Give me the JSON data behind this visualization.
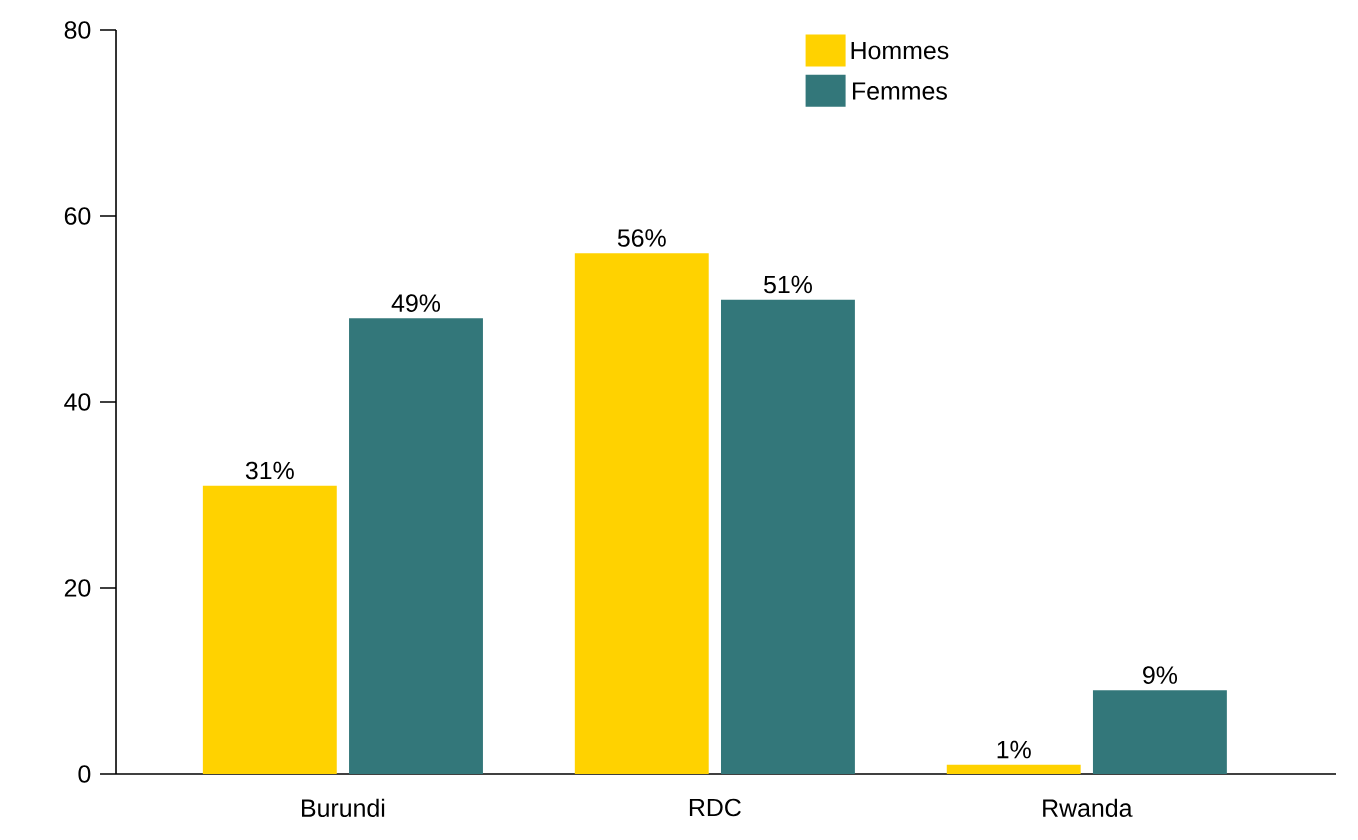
{
  "chart_data": {
    "type": "bar",
    "categories": [
      "Burundi",
      "RDC",
      "Rwanda"
    ],
    "series": [
      {
        "name": "Hommes",
        "color": "#ffd200",
        "values": [
          31,
          56,
          1
        ],
        "value_labels": [
          "31%",
          "56%",
          "1%"
        ]
      },
      {
        "name": "Femmes",
        "color": "#33777a",
        "values": [
          49,
          51,
          9
        ],
        "value_labels": [
          "49%",
          "51%",
          "9%"
        ]
      }
    ],
    "ylim": [
      0,
      80
    ],
    "yticks": [
      0,
      20,
      40,
      60,
      80
    ],
    "grid": false,
    "legend": "top right"
  }
}
